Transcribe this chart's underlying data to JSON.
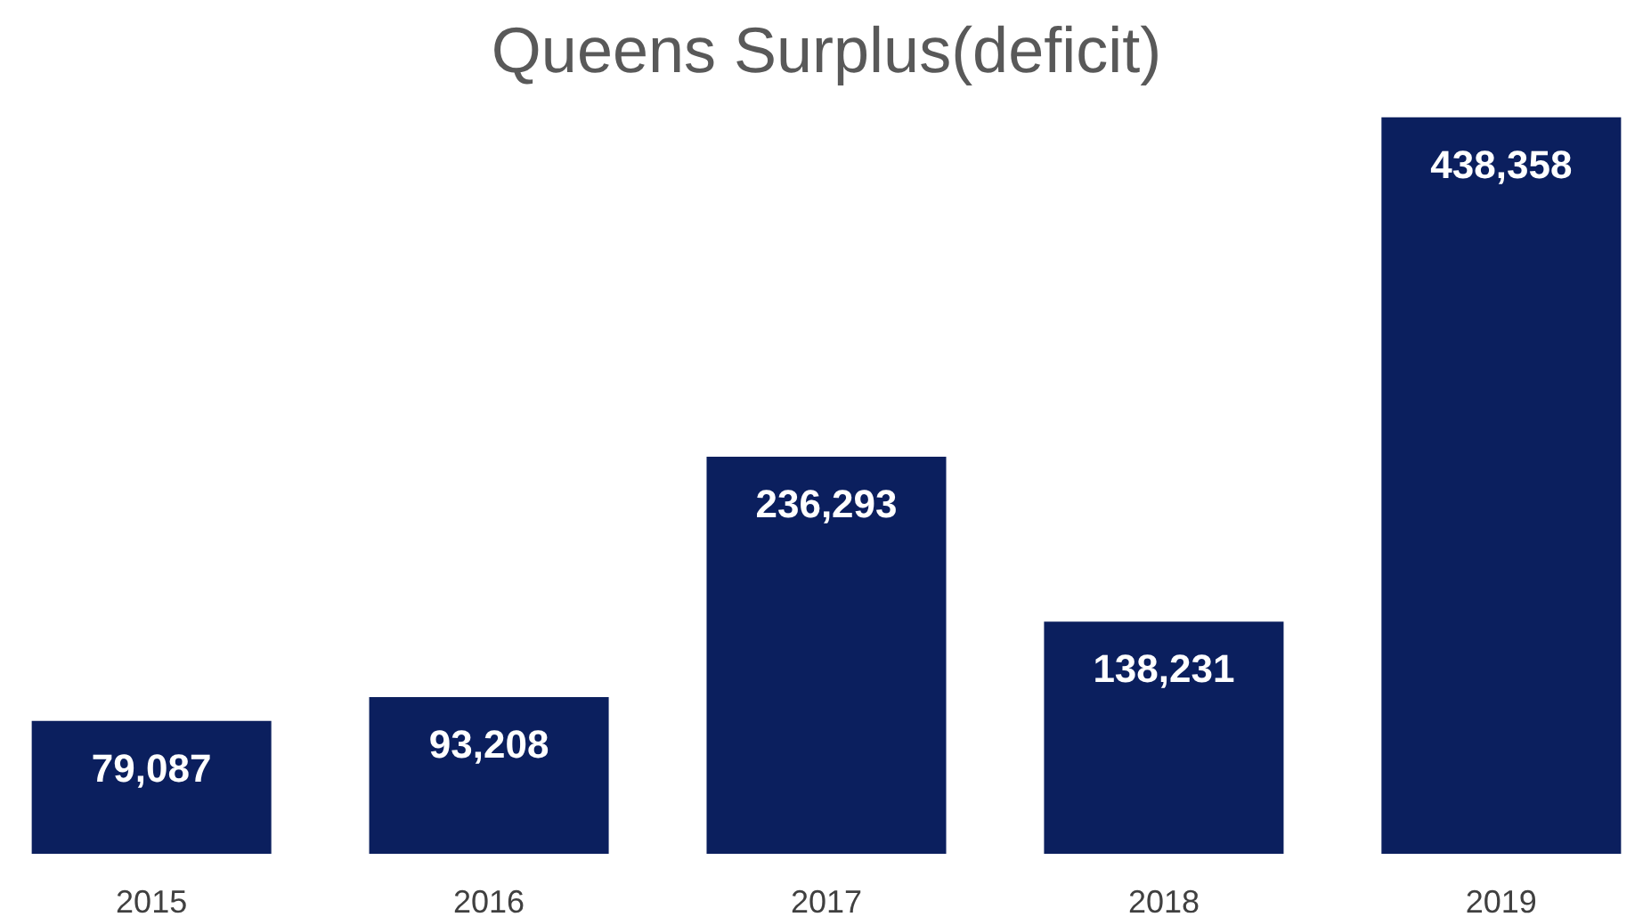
{
  "chart_data": {
    "type": "bar",
    "title": "Queens Surplus(deficit)",
    "categories": [
      "2015",
      "2016",
      "2017",
      "2018",
      "2019"
    ],
    "values": [
      79087,
      93208,
      236293,
      138231,
      438358
    ],
    "value_labels": [
      "79,087",
      "93,208",
      "236,293",
      "138,231",
      "438,358"
    ],
    "color": "#0b1f5e",
    "grid": false
  }
}
